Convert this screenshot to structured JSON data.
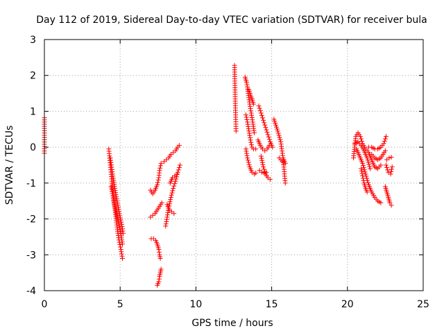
{
  "chart_data": {
    "type": "scatter",
    "title": "Day 112 of 2019, Sidereal Day-to-day VTEC variation (SDTVAR) for receiver bula",
    "xlabel": "GPS time / hours",
    "ylabel": "SDTVAR / TECUs",
    "xlim": [
      0,
      25
    ],
    "ylim": [
      -4,
      3
    ],
    "xticks": [
      0,
      5,
      10,
      15,
      20,
      25
    ],
    "yticks": [
      -4,
      -3,
      -2,
      -1,
      0,
      1,
      2,
      3
    ],
    "grid": true,
    "marker": "plus",
    "series_color": "#ff0000",
    "segments": [
      {
        "x": [
          0.0,
          0.0,
          0.0
        ],
        "y": [
          0.82,
          0.52,
          -0.17
        ]
      },
      {
        "x": [
          4.25,
          4.35,
          4.45,
          4.55,
          4.65,
          4.75,
          4.85,
          4.95,
          5.05,
          5.15
        ],
        "y": [
          -0.05,
          -0.5,
          -0.95,
          -1.35,
          -1.7,
          -2.05,
          -2.4,
          -2.65,
          -2.85,
          -3.1
        ]
      },
      {
        "x": [
          4.35,
          4.5,
          4.65,
          4.8,
          4.95,
          5.1,
          5.2
        ],
        "y": [
          -0.3,
          -0.75,
          -1.15,
          -1.5,
          -1.85,
          -2.15,
          -2.4
        ]
      },
      {
        "x": [
          4.4,
          4.6,
          4.8,
          5.0,
          5.15
        ],
        "y": [
          -1.1,
          -1.55,
          -1.95,
          -2.3,
          -2.7
        ]
      },
      {
        "x": [
          7.0,
          7.15,
          7.3,
          7.45,
          7.55,
          7.6,
          7.7
        ],
        "y": [
          -1.2,
          -1.3,
          -1.2,
          -1.05,
          -0.85,
          -0.65,
          -0.45
        ]
      },
      {
        "x": [
          7.0,
          7.15,
          7.3,
          7.45,
          7.6,
          7.75
        ],
        "y": [
          -1.95,
          -1.9,
          -1.85,
          -1.75,
          -1.65,
          -1.55
        ]
      },
      {
        "x": [
          7.05,
          7.2,
          7.35,
          7.45,
          7.55,
          7.6,
          7.65
        ],
        "y": [
          -2.55,
          -2.55,
          -2.6,
          -2.7,
          -2.85,
          -3.0,
          -3.1
        ]
      },
      {
        "x": [
          7.45,
          7.55,
          7.6,
          7.65,
          7.7
        ],
        "y": [
          -3.85,
          -3.75,
          -3.6,
          -3.5,
          -3.4
        ]
      },
      {
        "x": [
          7.9,
          8.05,
          8.2,
          8.35,
          8.5,
          8.65,
          8.8,
          8.9
        ],
        "y": [
          -0.4,
          -0.35,
          -0.3,
          -0.2,
          -0.15,
          -0.1,
          0.0,
          0.05
        ]
      },
      {
        "x": [
          8.0,
          8.1,
          8.2,
          8.35,
          8.5,
          8.65,
          8.8,
          8.95
        ],
        "y": [
          -2.2,
          -1.95,
          -1.7,
          -1.4,
          -1.15,
          -0.95,
          -0.7,
          -0.5
        ]
      },
      {
        "x": [
          8.1,
          8.25,
          8.4,
          8.55
        ],
        "y": [
          -1.6,
          -1.75,
          -1.8,
          -1.85
        ]
      },
      {
        "x": [
          8.3,
          8.45,
          8.6,
          8.75
        ],
        "y": [
          -1.0,
          -0.85,
          -0.8,
          -0.75
        ]
      },
      {
        "x": [
          12.55,
          12.6,
          12.65
        ],
        "y": [
          2.28,
          1.22,
          0.45
        ]
      },
      {
        "x": [
          13.25,
          13.35,
          13.45,
          13.55,
          13.65,
          13.75,
          13.85
        ],
        "y": [
          1.95,
          1.8,
          1.5,
          1.2,
          0.95,
          0.7,
          0.4
        ]
      },
      {
        "x": [
          13.3,
          13.4,
          13.5,
          13.6,
          13.7,
          13.8,
          13.95
        ],
        "y": [
          0.9,
          0.7,
          0.45,
          0.2,
          0.0,
          -0.05,
          -0.05
        ]
      },
      {
        "x": [
          13.3,
          13.4,
          13.55,
          13.7,
          13.85,
          13.95
        ],
        "y": [
          -0.05,
          -0.3,
          -0.55,
          -0.7,
          -0.75,
          -0.72
        ]
      },
      {
        "x": [
          13.5,
          13.6,
          13.7,
          13.8
        ],
        "y": [
          1.6,
          1.45,
          1.35,
          1.2
        ]
      },
      {
        "x": [
          14.15,
          14.3,
          14.45,
          14.6,
          14.75,
          14.9,
          15.05
        ],
        "y": [
          1.15,
          0.95,
          0.75,
          0.55,
          0.35,
          0.15,
          0.0
        ]
      },
      {
        "x": [
          14.1,
          14.25,
          14.4,
          14.55,
          14.7,
          14.85
        ],
        "y": [
          0.2,
          0.05,
          -0.05,
          -0.1,
          -0.05,
          0.05
        ]
      },
      {
        "x": [
          14.3,
          14.45,
          14.6,
          14.75,
          14.9
        ],
        "y": [
          -0.25,
          -0.55,
          -0.75,
          -0.85,
          -0.9
        ]
      },
      {
        "x": [
          14.2,
          14.35,
          14.5,
          14.65
        ],
        "y": [
          -0.65,
          -0.7,
          -0.72,
          -0.7
        ]
      },
      {
        "x": [
          15.15,
          15.4,
          15.6,
          15.75,
          15.9
        ],
        "y": [
          0.78,
          0.45,
          0.15,
          -0.3,
          -1.0
        ]
      },
      {
        "x": [
          15.5,
          15.6,
          15.7,
          15.8,
          15.9
        ],
        "y": [
          -0.3,
          -0.35,
          -0.4,
          -0.35,
          -0.45
        ]
      },
      {
        "x": [
          20.4,
          20.55,
          20.7,
          20.85,
          21.0,
          21.2,
          21.4,
          21.6,
          21.8,
          22.0,
          22.2
        ],
        "y": [
          -0.3,
          0.3,
          0.4,
          0.3,
          0.1,
          -0.05,
          -0.15,
          -0.35,
          -0.55,
          -0.6,
          -0.5
        ]
      },
      {
        "x": [
          20.6,
          20.8,
          21.0,
          21.2,
          21.4,
          21.6,
          21.8,
          22.0,
          22.2
        ],
        "y": [
          -0.05,
          -0.25,
          -0.45,
          -0.75,
          -1.05,
          -1.25,
          -1.4,
          -1.5,
          -1.55
        ]
      },
      {
        "x": [
          20.5,
          20.7,
          20.9,
          21.1,
          21.3,
          21.5
        ],
        "y": [
          0.1,
          0.15,
          0.05,
          -0.1,
          -0.3,
          -0.6
        ]
      },
      {
        "x": [
          20.9,
          21.0,
          21.1,
          21.2,
          21.3
        ],
        "y": [
          -0.6,
          -0.8,
          -1.0,
          -1.15,
          -1.25
        ]
      },
      {
        "x": [
          21.4,
          21.6,
          21.8,
          22.0,
          22.2,
          22.4,
          22.55
        ],
        "y": [
          0.0,
          0.0,
          -0.05,
          -0.05,
          0.0,
          0.1,
          0.3
        ]
      },
      {
        "x": [
          21.6,
          21.8,
          22.0,
          22.2,
          22.35,
          22.5
        ],
        "y": [
          -0.2,
          -0.3,
          -0.35,
          -0.3,
          -0.2,
          -0.1
        ]
      },
      {
        "x": [
          22.5,
          22.6,
          22.7,
          22.8,
          22.9
        ],
        "y": [
          -1.1,
          -1.25,
          -1.4,
          -1.55,
          -1.62
        ]
      },
      {
        "x": [
          22.55,
          22.7,
          22.85,
          22.95
        ],
        "y": [
          -0.5,
          -0.7,
          -0.75,
          -0.55
        ]
      },
      {
        "x": [
          22.6,
          22.75,
          22.9
        ],
        "y": [
          -0.35,
          -0.3,
          -0.28
        ]
      }
    ]
  }
}
